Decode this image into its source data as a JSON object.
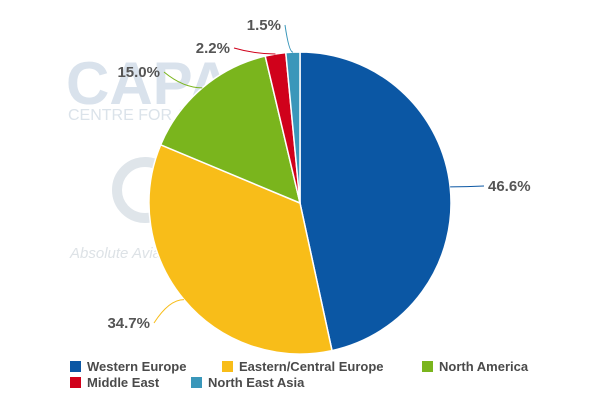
{
  "chart_data": {
    "type": "pie",
    "title": "",
    "slices": [
      {
        "name": "Western Europe",
        "value": 46.6,
        "label": "46.6%",
        "color": "#0b57a4"
      },
      {
        "name": "Eastern/Central Europe",
        "value": 34.7,
        "label": "34.7%",
        "color": "#f8bd19"
      },
      {
        "name": "North America",
        "value": 15.0,
        "label": "15.0%",
        "color": "#7ab51d"
      },
      {
        "name": "Middle East",
        "value": 2.2,
        "label": "2.2%",
        "color": "#d0011b"
      },
      {
        "name": "North East Asia",
        "value": 1.5,
        "label": "1.5%",
        "color": "#3a97ba"
      }
    ],
    "legend_position": "bottom-left"
  },
  "watermark": {
    "brand": "CAPA",
    "tagline": "CENTRE FOR AVIATION",
    "slogan": "Absolute Aviation Intelligence"
  }
}
